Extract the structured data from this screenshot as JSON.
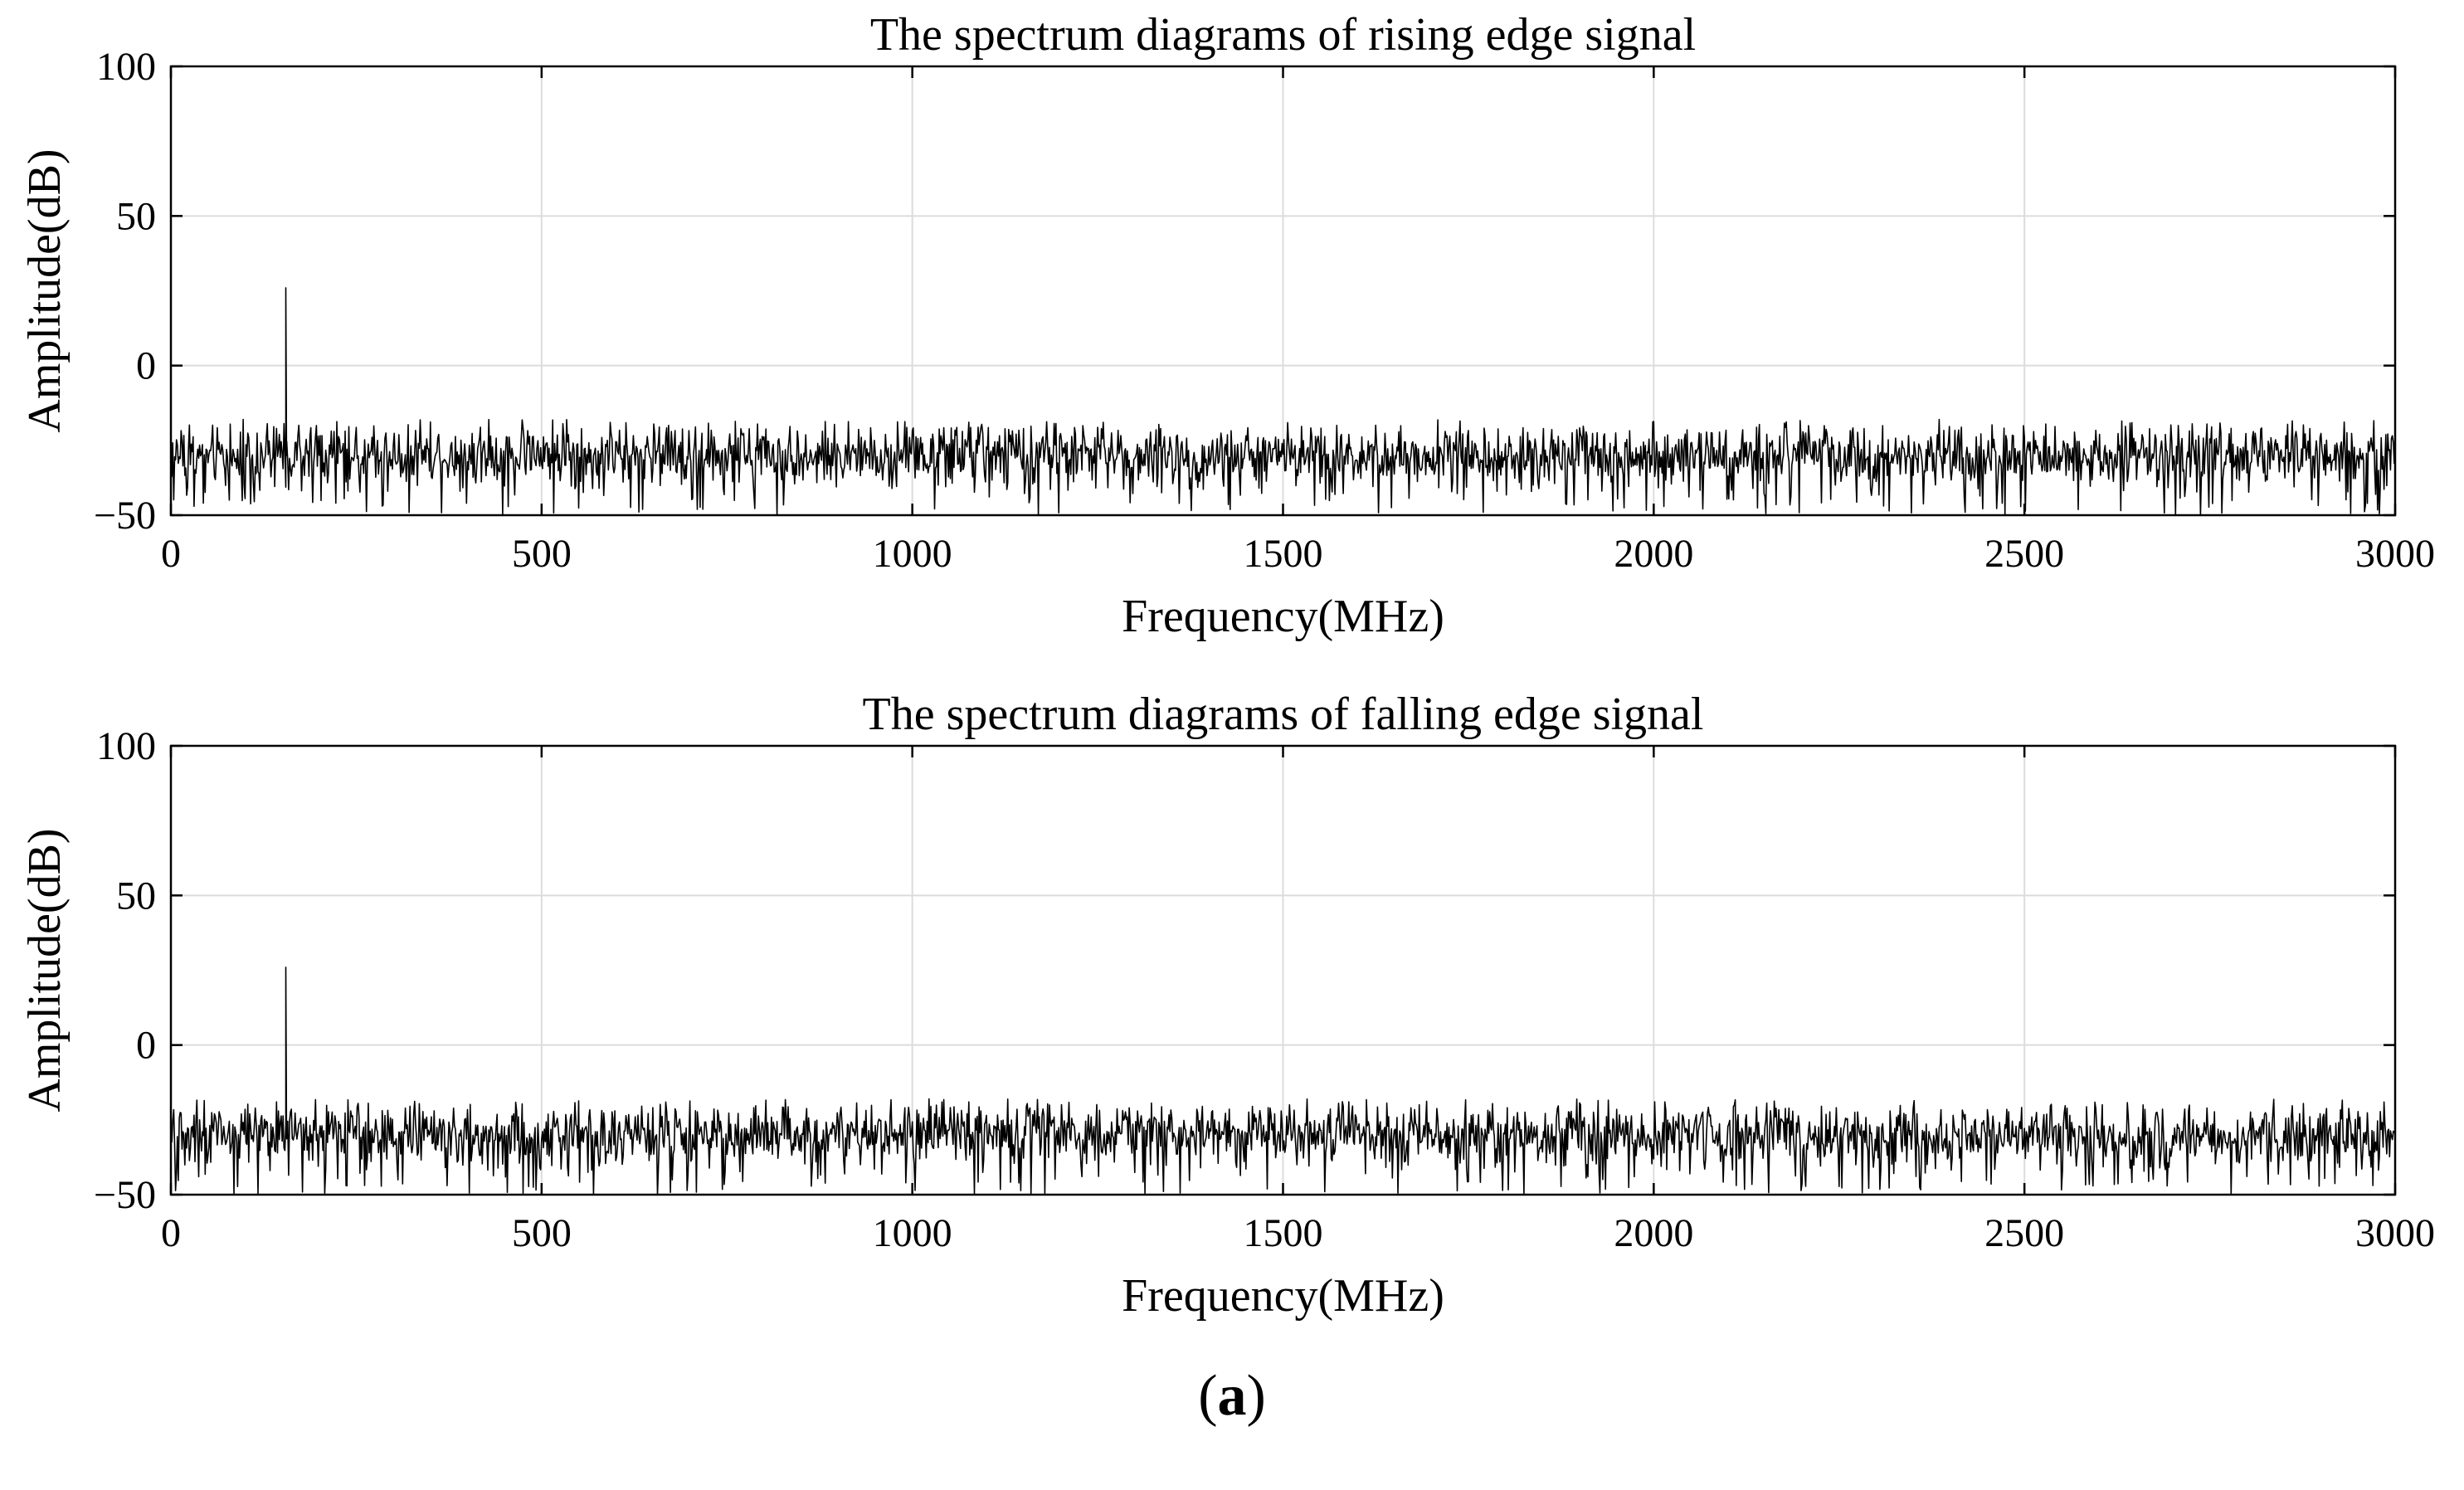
{
  "caption": {
    "open": "(",
    "letter": "a",
    "close": ")"
  },
  "chart_data": [
    {
      "type": "line",
      "title": "The spectrum diagrams of rising edge signal",
      "xlabel": "Frequency(MHz)",
      "ylabel": "Amplitude(dB)",
      "xlim": [
        0,
        3000
      ],
      "ylim": [
        -50,
        100
      ],
      "xticks": [
        0,
        500,
        1000,
        1500,
        2000,
        2500,
        3000
      ],
      "xtick_labels": [
        "0",
        "500",
        "1000",
        "1500",
        "2000",
        "2500",
        "3000"
      ],
      "yticks": [
        100,
        50,
        0,
        -50
      ],
      "ytick_labels": [
        "100",
        "50",
        "0",
        "−50"
      ],
      "grid": true,
      "color": "#000000",
      "noise_floor": {
        "mean": -30,
        "min": -50,
        "max": -18
      },
      "peaks": [
        {
          "x": 155,
          "y": 26
        }
      ]
    },
    {
      "type": "line",
      "title": "The spectrum diagrams of falling edge signal",
      "xlabel": "Frequency(MHz)",
      "ylabel": "Amplitude(dB)",
      "xlim": [
        0,
        3000
      ],
      "ylim": [
        -50,
        100
      ],
      "xticks": [
        0,
        500,
        1000,
        1500,
        2000,
        2500,
        3000
      ],
      "xtick_labels": [
        "0",
        "500",
        "1000",
        "1500",
        "2000",
        "2500",
        "3000"
      ],
      "yticks": [
        100,
        50,
        0,
        -50
      ],
      "ytick_labels": [
        "100",
        "50",
        "0",
        "−50"
      ],
      "grid": true,
      "color": "#000000",
      "noise_floor": {
        "mean": -30,
        "min": -50,
        "max": -18
      },
      "peaks": [
        {
          "x": 155,
          "y": 26
        }
      ]
    }
  ]
}
